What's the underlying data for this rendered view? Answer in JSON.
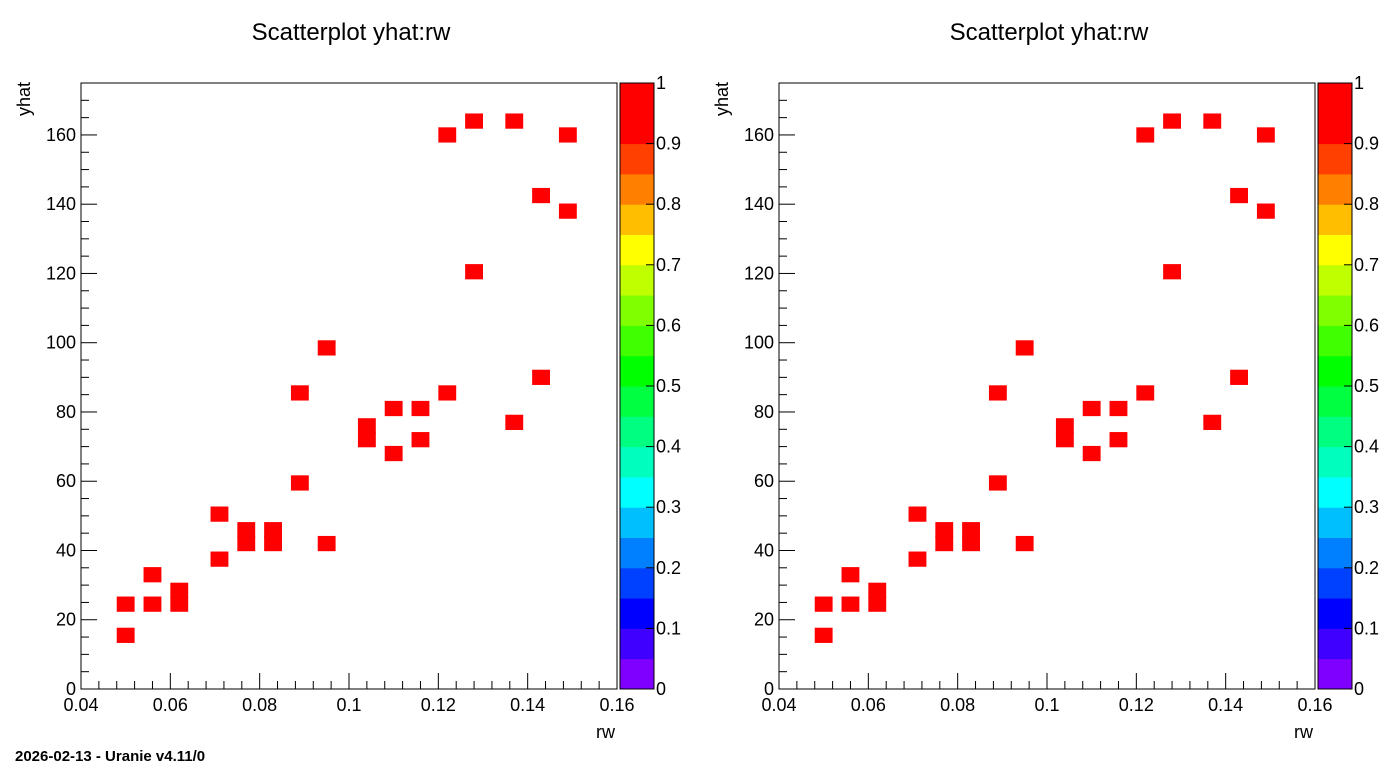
{
  "footer": "2026-02-13 - Uranie v4.11/0",
  "chart_data": [
    {
      "type": "heatmap",
      "title": "Scatterplot yhat:rw",
      "xlabel": "rw",
      "ylabel": "yhat",
      "xlim": [
        0.04,
        0.16
      ],
      "ylim": [
        0,
        175
      ],
      "xticks": [
        "0.04",
        "0.06",
        "0.08",
        "0.1",
        "0.12",
        "0.14",
        "0.16"
      ],
      "xtick_values": [
        0.04,
        0.06,
        0.08,
        0.1,
        0.12,
        0.14,
        0.16
      ],
      "yticks": [
        "0",
        "20",
        "40",
        "60",
        "80",
        "100",
        "120",
        "140",
        "160"
      ],
      "ytick_values": [
        0,
        20,
        40,
        60,
        80,
        100,
        120,
        140,
        160
      ],
      "grid": false,
      "colorbar": {
        "range": [
          0,
          1
        ],
        "ticks": [
          "0",
          "0.1",
          "0.2",
          "0.3",
          "0.4",
          "0.5",
          "0.6",
          "0.7",
          "0.8",
          "0.9",
          "1"
        ],
        "tick_values": [
          0,
          0.1,
          0.2,
          0.3,
          0.4,
          0.5,
          0.6,
          0.7,
          0.8,
          0.9,
          1
        ],
        "colors": [
          "#7f00ff",
          "#4000ff",
          "#0000ff",
          "#0040ff",
          "#0080ff",
          "#00bfff",
          "#00ffff",
          "#00ffbf",
          "#00ff80",
          "#00ff40",
          "#00ff00",
          "#40ff00",
          "#80ff00",
          "#bfff00",
          "#ffff00",
          "#ffbf00",
          "#ff8000",
          "#ff4000",
          "#ff0000",
          "#ff0000"
        ]
      },
      "cell_color": "#ff0000",
      "cell_size": [
        0.004,
        4.4
      ],
      "points": [
        {
          "x": 0.05,
          "y": 15.5
        },
        {
          "x": 0.05,
          "y": 24.5
        },
        {
          "x": 0.056,
          "y": 24.5
        },
        {
          "x": 0.056,
          "y": 33
        },
        {
          "x": 0.062,
          "y": 24.5
        },
        {
          "x": 0.062,
          "y": 28.5
        },
        {
          "x": 0.071,
          "y": 37.5
        },
        {
          "x": 0.071,
          "y": 50.5
        },
        {
          "x": 0.077,
          "y": 42
        },
        {
          "x": 0.077,
          "y": 46
        },
        {
          "x": 0.083,
          "y": 42
        },
        {
          "x": 0.083,
          "y": 46
        },
        {
          "x": 0.089,
          "y": 59.5
        },
        {
          "x": 0.089,
          "y": 85.5
        },
        {
          "x": 0.095,
          "y": 42
        },
        {
          "x": 0.095,
          "y": 98.5
        },
        {
          "x": 0.104,
          "y": 72
        },
        {
          "x": 0.104,
          "y": 76
        },
        {
          "x": 0.11,
          "y": 68
        },
        {
          "x": 0.11,
          "y": 81
        },
        {
          "x": 0.116,
          "y": 72
        },
        {
          "x": 0.116,
          "y": 81
        },
        {
          "x": 0.122,
          "y": 85.5
        },
        {
          "x": 0.122,
          "y": 160
        },
        {
          "x": 0.128,
          "y": 120.5
        },
        {
          "x": 0.128,
          "y": 164
        },
        {
          "x": 0.137,
          "y": 77
        },
        {
          "x": 0.137,
          "y": 164
        },
        {
          "x": 0.143,
          "y": 90
        },
        {
          "x": 0.143,
          "y": 142.5
        },
        {
          "x": 0.149,
          "y": 138
        },
        {
          "x": 0.149,
          "y": 160
        }
      ]
    },
    {
      "type": "heatmap",
      "title": "Scatterplot yhat:rw",
      "xlabel": "rw",
      "ylabel": "yhat",
      "xlim": [
        0.04,
        0.16
      ],
      "ylim": [
        0,
        175
      ],
      "xticks": [
        "0.04",
        "0.06",
        "0.08",
        "0.1",
        "0.12",
        "0.14",
        "0.16"
      ],
      "xtick_values": [
        0.04,
        0.06,
        0.08,
        0.1,
        0.12,
        0.14,
        0.16
      ],
      "yticks": [
        "0",
        "20",
        "40",
        "60",
        "80",
        "100",
        "120",
        "140",
        "160"
      ],
      "ytick_values": [
        0,
        20,
        40,
        60,
        80,
        100,
        120,
        140,
        160
      ],
      "grid": false,
      "colorbar": {
        "range": [
          0,
          1
        ],
        "ticks": [
          "0",
          "0.1",
          "0.2",
          "0.3",
          "0.4",
          "0.5",
          "0.6",
          "0.7",
          "0.8",
          "0.9",
          "1"
        ],
        "tick_values": [
          0,
          0.1,
          0.2,
          0.3,
          0.4,
          0.5,
          0.6,
          0.7,
          0.8,
          0.9,
          1
        ],
        "colors": [
          "#7f00ff",
          "#4000ff",
          "#0000ff",
          "#0040ff",
          "#0080ff",
          "#00bfff",
          "#00ffff",
          "#00ffbf",
          "#00ff80",
          "#00ff40",
          "#00ff00",
          "#40ff00",
          "#80ff00",
          "#bfff00",
          "#ffff00",
          "#ffbf00",
          "#ff8000",
          "#ff4000",
          "#ff0000",
          "#ff0000"
        ]
      },
      "cell_color": "#ff0000",
      "cell_size": [
        0.004,
        4.4
      ],
      "points": [
        {
          "x": 0.05,
          "y": 15.5
        },
        {
          "x": 0.05,
          "y": 24.5
        },
        {
          "x": 0.056,
          "y": 24.5
        },
        {
          "x": 0.056,
          "y": 33
        },
        {
          "x": 0.062,
          "y": 24.5
        },
        {
          "x": 0.062,
          "y": 28.5
        },
        {
          "x": 0.071,
          "y": 37.5
        },
        {
          "x": 0.071,
          "y": 50.5
        },
        {
          "x": 0.077,
          "y": 42
        },
        {
          "x": 0.077,
          "y": 46
        },
        {
          "x": 0.083,
          "y": 42
        },
        {
          "x": 0.083,
          "y": 46
        },
        {
          "x": 0.089,
          "y": 59.5
        },
        {
          "x": 0.089,
          "y": 85.5
        },
        {
          "x": 0.095,
          "y": 42
        },
        {
          "x": 0.095,
          "y": 98.5
        },
        {
          "x": 0.104,
          "y": 72
        },
        {
          "x": 0.104,
          "y": 76
        },
        {
          "x": 0.11,
          "y": 68
        },
        {
          "x": 0.11,
          "y": 81
        },
        {
          "x": 0.116,
          "y": 72
        },
        {
          "x": 0.116,
          "y": 81
        },
        {
          "x": 0.122,
          "y": 85.5
        },
        {
          "x": 0.122,
          "y": 160
        },
        {
          "x": 0.128,
          "y": 120.5
        },
        {
          "x": 0.128,
          "y": 164
        },
        {
          "x": 0.137,
          "y": 77
        },
        {
          "x": 0.137,
          "y": 164
        },
        {
          "x": 0.143,
          "y": 90
        },
        {
          "x": 0.143,
          "y": 142.5
        },
        {
          "x": 0.149,
          "y": 138
        },
        {
          "x": 0.149,
          "y": 160
        }
      ]
    }
  ]
}
